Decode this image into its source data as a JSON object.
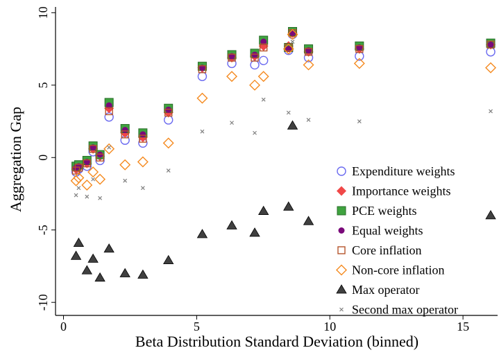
{
  "chart_data": {
    "type": "scatter",
    "x_label": "Beta Distribution Standard Deviation (binned)",
    "y_label": "Aggregation Gap",
    "x": [
      0.47,
      0.57,
      0.88,
      1.11,
      1.37,
      1.71,
      2.31,
      2.98,
      3.94,
      5.21,
      6.32,
      7.18,
      7.51,
      8.45,
      8.6,
      9.2,
      11.11,
      16.04
    ],
    "xlim": [
      -0.3,
      16.3
    ],
    "xticks": [
      0,
      5,
      10,
      15
    ],
    "ylim": [
      -10.9,
      10.4
    ],
    "yticks": [
      -10,
      -5,
      0,
      5,
      10
    ],
    "legend_position": "lower right",
    "series": [
      {
        "name": "Expenditure weights",
        "marker": "circle-open",
        "color": "#6a6af0",
        "values": [
          -1.0,
          -0.8,
          -0.6,
          0.4,
          -0.2,
          2.8,
          1.2,
          1.0,
          2.6,
          5.6,
          6.5,
          6.4,
          6.7,
          7.4,
          8.5,
          6.9,
          7.0,
          7.3
        ]
      },
      {
        "name": "Importance weights",
        "marker": "diamond",
        "color": "#f04848",
        "values": [
          -0.8,
          -0.7,
          -0.4,
          0.6,
          0.1,
          3.4,
          1.7,
          1.4,
          3.1,
          6.2,
          6.9,
          7.0,
          7.7,
          7.7,
          8.6,
          7.3,
          7.5,
          7.8
        ]
      },
      {
        "name": "PCE weights",
        "marker": "square",
        "color": "#3fa33f",
        "values": [
          -0.6,
          -0.5,
          -0.2,
          0.8,
          0.2,
          3.8,
          2.0,
          1.7,
          3.4,
          6.3,
          7.1,
          7.2,
          8.1,
          7.6,
          8.7,
          7.5,
          7.7,
          7.9
        ]
      },
      {
        "name": "Equal weights",
        "marker": "dot",
        "color": "#7a0a7a",
        "values": [
          -0.7,
          -0.6,
          -0.3,
          0.7,
          0.2,
          3.6,
          1.9,
          1.6,
          3.3,
          6.2,
          7.0,
          7.1,
          8.0,
          7.5,
          8.6,
          7.4,
          7.6,
          7.8
        ]
      },
      {
        "name": "Core inflation",
        "marker": "square-open",
        "color": "#b5542a",
        "values": [
          -0.9,
          -0.7,
          -0.4,
          0.6,
          0.0,
          3.2,
          1.6,
          1.3,
          3.1,
          6.1,
          6.9,
          6.9,
          7.6,
          7.6,
          8.6,
          7.3,
          7.5,
          7.8
        ]
      },
      {
        "name": "Non-core inflation",
        "marker": "diamond-open",
        "color": "#f58a1f",
        "values": [
          -1.6,
          -1.4,
          -1.9,
          -1.0,
          -1.5,
          0.6,
          -0.5,
          -0.3,
          1.0,
          4.1,
          5.6,
          5.0,
          5.6,
          7.5,
          8.5,
          6.4,
          6.5,
          6.2
        ]
      },
      {
        "name": "Max operator",
        "marker": "triangle",
        "color": "#404040",
        "values": [
          -6.8,
          -5.9,
          -7.8,
          -7.0,
          -8.3,
          -6.3,
          -8.0,
          -8.1,
          -7.1,
          -5.3,
          -4.7,
          -5.2,
          -3.7,
          -3.4,
          2.2,
          -4.4,
          null,
          -4.0
        ]
      },
      {
        "name": "Second max operator",
        "marker": "cross",
        "color": "#808080",
        "values": [
          -2.6,
          -2.1,
          -2.7,
          -1.5,
          -2.8,
          0.7,
          -1.6,
          -2.1,
          -0.9,
          1.8,
          2.4,
          1.7,
          4.0,
          3.1,
          8.0,
          2.6,
          2.5,
          3.2
        ]
      }
    ]
  }
}
